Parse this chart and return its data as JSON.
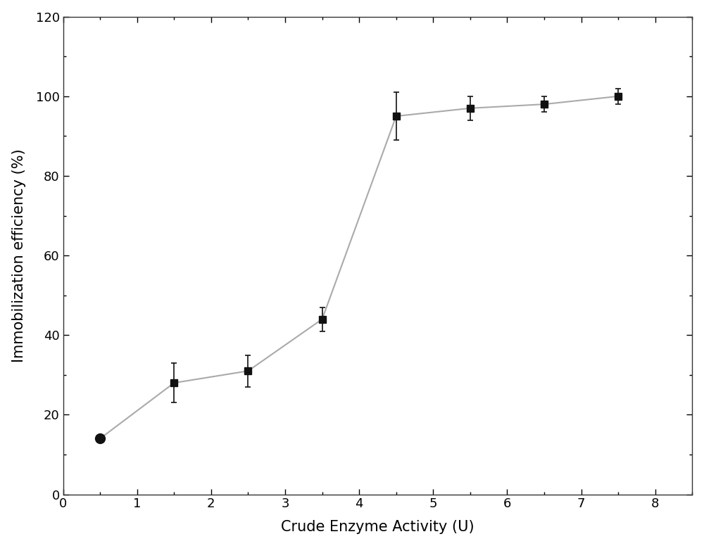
{
  "x": [
    0.5,
    1.5,
    2.5,
    3.5,
    4.5,
    5.5,
    6.5,
    7.5
  ],
  "y": [
    14,
    28,
    31,
    44,
    95,
    97,
    98,
    100
  ],
  "yerr": [
    1,
    5,
    4,
    3,
    6,
    3,
    2,
    2
  ],
  "xlabel": "Crude Enzyme Activity (U)",
  "ylabel": "Immobilization efficiency (%)",
  "xlim": [
    0,
    8.5
  ],
  "ylim": [
    0,
    120
  ],
  "yticks": [
    0,
    20,
    40,
    60,
    80,
    100,
    120
  ],
  "xticks": [
    0,
    1,
    2,
    3,
    4,
    5,
    6,
    7,
    8
  ],
  "line_color": "#aaaaaa",
  "marker_color": "#111111",
  "background_color": "#ffffff",
  "figure_background": "#ffffff",
  "xlabel_fontsize": 15,
  "ylabel_fontsize": 15,
  "tick_fontsize": 13
}
